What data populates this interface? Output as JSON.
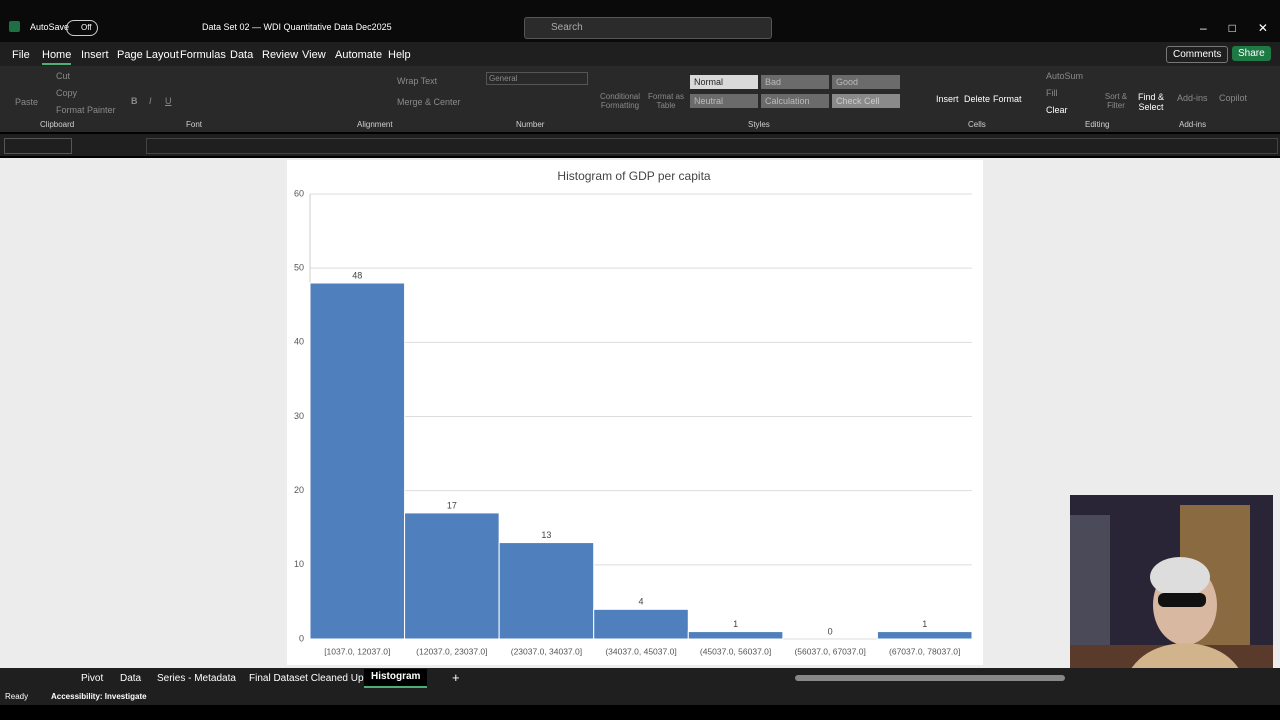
{
  "title_bar": {
    "autosave": "AutoSave",
    "autosave_state": "Off",
    "document": "Data Set 02 — WDI Quantitative Data Dec2025",
    "search": "Search"
  },
  "menu": [
    "File",
    "Home",
    "Insert",
    "Page Layout",
    "Formulas",
    "Data",
    "Review",
    "View",
    "Automate",
    "Help"
  ],
  "actions": [
    "Comments",
    "Share"
  ],
  "ribbon_items": [
    "Paste",
    "Cut",
    "Copy",
    "Format Painter",
    "B",
    "I",
    "U",
    "Wrap Text",
    "Merge & Center",
    "General",
    "Conditional Formatting",
    "Format as Table",
    "Normal",
    "Bad",
    "Good",
    "Neutral",
    "Calculation",
    "Check Cell",
    "Insert",
    "Delete",
    "Format",
    "AutoSum",
    "Fill",
    "Clear",
    "Sort & Filter",
    "Find & Select",
    "Add-ins",
    "Copilot"
  ],
  "ribbon_groups": [
    "Clipboard",
    "Font",
    "Alignment",
    "Number",
    "Styles",
    "Cells",
    "Editing",
    "Add-ins"
  ],
  "sheet_tabs": [
    "Pivot",
    "Data",
    "Series - Metadata",
    "Final Dataset Cleaned Up",
    "Histogram"
  ],
  "status": {
    "ready": "Ready",
    "accessibility": "Accessibility: Investigate"
  },
  "chart_data": {
    "type": "bar",
    "title": "Histogram of GDP per capita",
    "categories": [
      "[1037.0, 12037.0]",
      "(12037.0, 23037.0]",
      "(23037.0, 34037.0]",
      "(34037.0, 45037.0]",
      "(45037.0, 56037.0]",
      "(56037.0, 67037.0]",
      "(67037.0, 78037.0]"
    ],
    "values": [
      48,
      17,
      13,
      4,
      1,
      0,
      1
    ],
    "color": "#4f7fbc",
    "ylim": [
      0,
      60
    ],
    "yticks": [
      0,
      10,
      20,
      30,
      40,
      50,
      60
    ],
    "grid": true
  }
}
